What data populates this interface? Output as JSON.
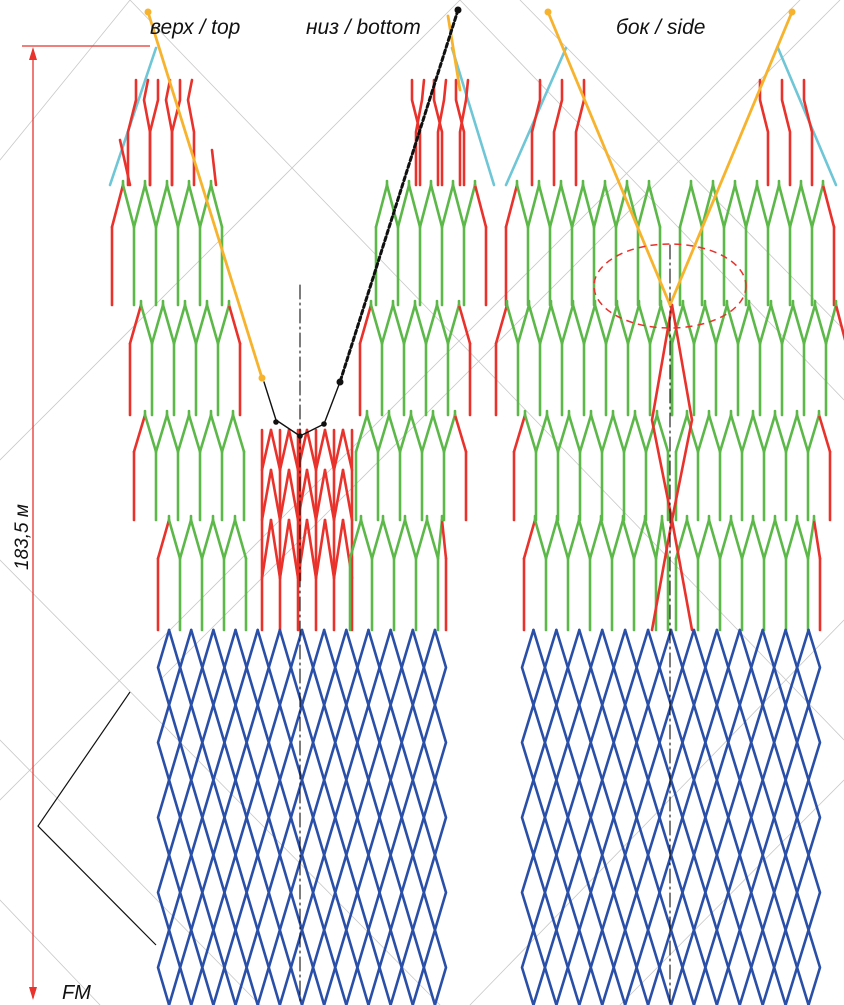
{
  "labels": {
    "top": "верх / top",
    "bottom": "низ / bottom",
    "side": "бок / side",
    "length": "183,5 м",
    "fm": "FM"
  },
  "colors": {
    "wing": "#e8322b",
    "body": "#5cb848",
    "codend": "#2a4fa8",
    "headrope": "#f7b32d",
    "wingtip": "#6ec6d6",
    "groundrope": "#111111",
    "dimension": "#e8322b",
    "guide": "#c8c8c8"
  },
  "icons": {
    "arrow_up": "arrow-up-icon",
    "arrow_down": "arrow-down-icon"
  }
}
